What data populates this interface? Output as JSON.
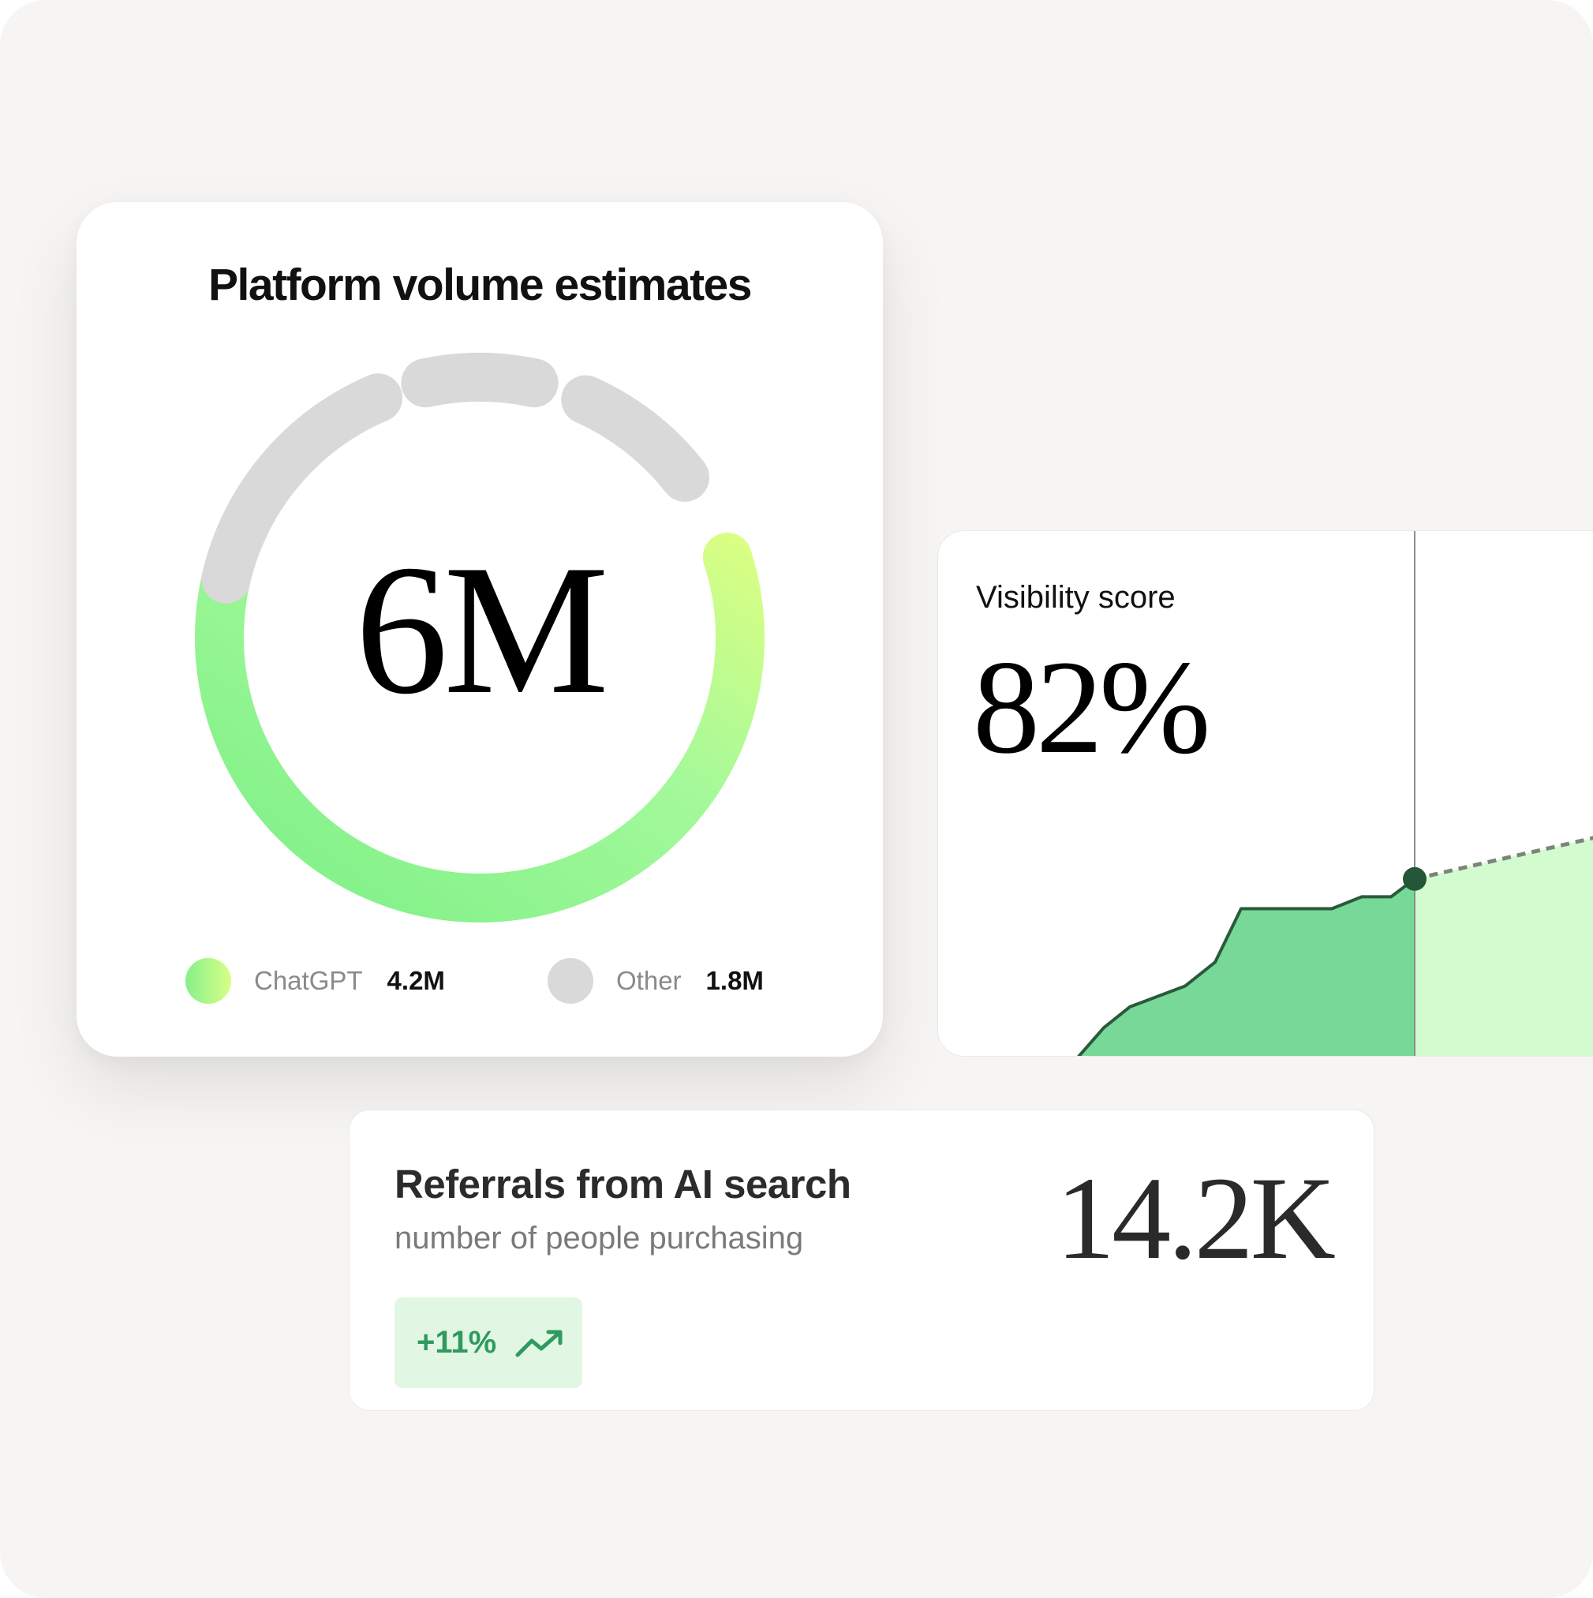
{
  "platform_card": {
    "title": "Platform volume estimates",
    "total": "6M",
    "legend": [
      {
        "name": "ChatGPT",
        "value": "4.2M"
      },
      {
        "name": "Other",
        "value": "1.8M"
      }
    ]
  },
  "visibility_card": {
    "title": "Visibility score",
    "value": "82%"
  },
  "referrals_card": {
    "title": "Referrals from AI search",
    "subtitle": "number of people purchasing",
    "value": "14.2K",
    "change": "+11%"
  },
  "colors": {
    "chatgpt_gradient": [
      "#82f28a",
      "#d5ff86"
    ],
    "other": "#d9d9d9",
    "area_actual": "#78d897",
    "area_projected": "#d3fbd0",
    "line": "#2a5a3b",
    "badge_bg": "#e2f7e3",
    "badge_text": "#2e9a5f"
  },
  "chart_data": [
    {
      "type": "pie",
      "title": "Platform volume estimates",
      "categories": [
        "ChatGPT",
        "Other"
      ],
      "values": [
        4.2,
        1.8
      ],
      "unit": "M",
      "center_label": "6M"
    },
    {
      "type": "area",
      "title": "Visibility score",
      "values": [
        10,
        17,
        24,
        32,
        50,
        50,
        50,
        50,
        54,
        54,
        60
      ],
      "projection": [
        60,
        78
      ],
      "current_value": "82%"
    }
  ]
}
